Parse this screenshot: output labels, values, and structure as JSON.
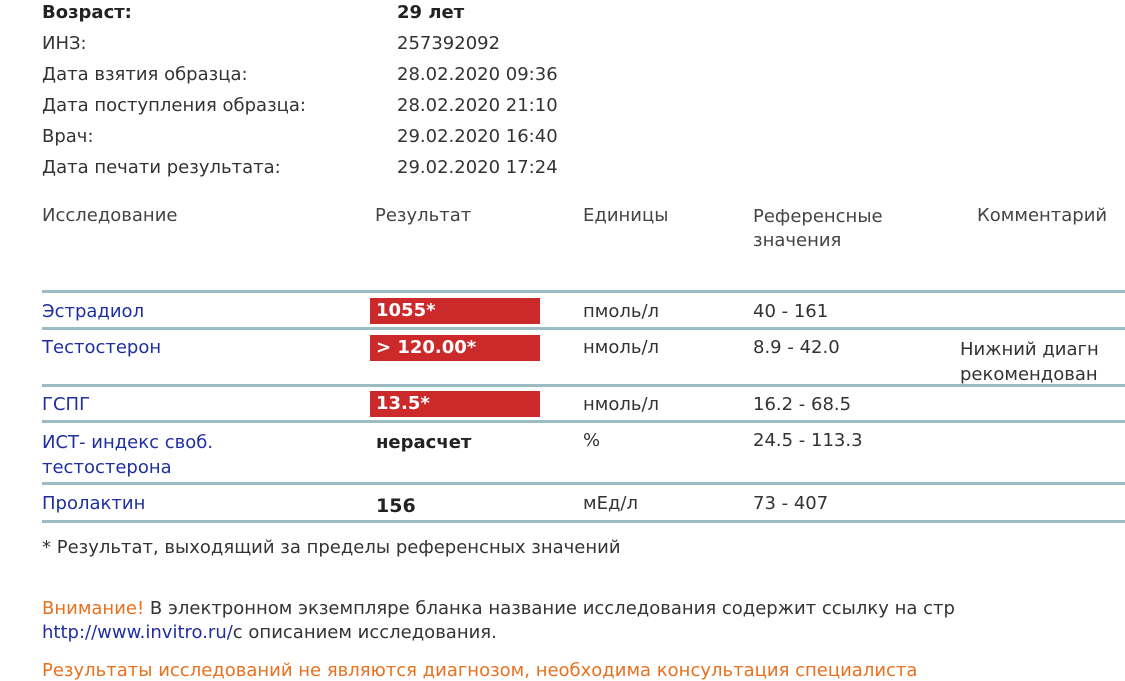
{
  "patient": {
    "age_label": "Возраст:",
    "age_value": "29 лет",
    "inz_label": "ИНЗ:",
    "inz_value": "257392092",
    "sample_taken_label": "Дата взятия образца:",
    "sample_taken_value": "28.02.2020 09:36",
    "sample_received_label": "Дата поступления образца:",
    "sample_received_value": "28.02.2020 21:10",
    "doctor_label": "Врач:",
    "doctor_value": "29.02.2020 16:40",
    "print_date_label": "Дата печати результата:",
    "print_date_value": "29.02.2020 17:24"
  },
  "table": {
    "headers": [
      "Исследование",
      "Результат",
      "Единицы",
      "Референсные значения",
      "Комментарий"
    ],
    "rows": [
      {
        "test": "Эстрадиол",
        "result": "1055*",
        "flagged": true,
        "units": "пмоль/л",
        "reference": "40 - 161",
        "comment": ""
      },
      {
        "test": "Тестостерон",
        "result": "> 120.00*",
        "flagged": true,
        "units": "нмоль/л",
        "reference": "8.9 - 42.0",
        "comment": "Нижний диагн рекомендован"
      },
      {
        "test": "ГСПГ",
        "result": "13.5*",
        "flagged": true,
        "units": "нмоль/л",
        "reference": "16.2 - 68.5",
        "comment": ""
      },
      {
        "test": "ИСТ- индекс своб. тестостерона",
        "result": "нерасчет",
        "flagged": false,
        "units": "%",
        "reference": "24.5 - 113.3",
        "comment": ""
      },
      {
        "test": "Пролактин",
        "result": "156",
        "flagged": false,
        "units": "мЕд/л",
        "reference": "73 - 407",
        "comment": ""
      }
    ]
  },
  "footnote": "* Результат, выходящий за пределы референсных значений",
  "notice": {
    "attention": "Внимание!",
    "text": "В электронном экземпляре бланка название исследования содержит ссылку на стр",
    "url": "http://www.invitro.ru/",
    "text2": "с описанием исследования."
  },
  "disclaimer": "Результаты исследований не являются диагнозом, необходима консультация специалиста",
  "colors": {
    "flag": "#cc2a2a",
    "link": "#1f2fa0",
    "attention": "#e8701e",
    "rule": "#9cbcc4"
  }
}
